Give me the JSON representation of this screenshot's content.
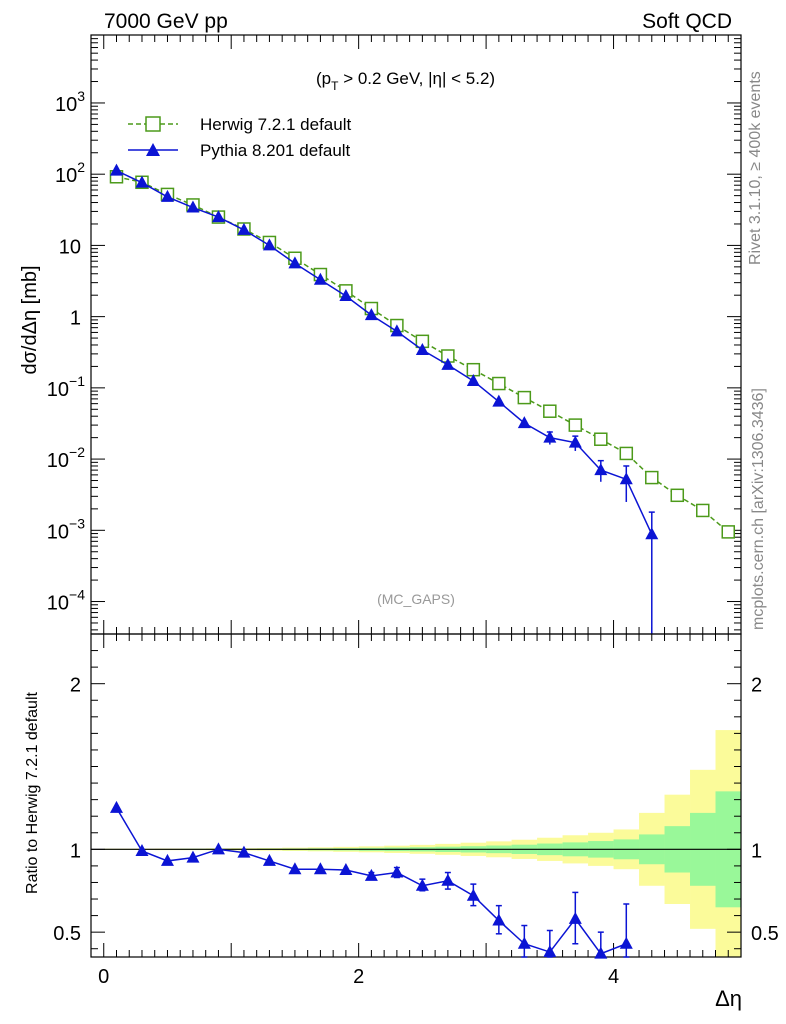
{
  "header": {
    "left": "7000 GeV pp",
    "right": "Soft QCD"
  },
  "side_labels": {
    "rivet": "Rivet 3.1.10, ≥ 400k events",
    "mcplots": "mcplots.cern.ch [arXiv:1306.3436]"
  },
  "chart_data": [
    {
      "type": "line",
      "panel": "main",
      "cut_label": "(p",
      "cut_label_sub": "T",
      "cut_label_rest": " > 0.2 GeV, |η| < 5.2)",
      "analysis_tag": "(MC_GAPS)",
      "ylabel": "dσ/dΔη [mb]",
      "yscale": "log",
      "xlim": [
        -0.1,
        5.0
      ],
      "ylim": [
        3.5e-05,
        9000
      ],
      "y_ticks": [
        {
          "v": 0.0001,
          "base": "10",
          "exp": "−4"
        },
        {
          "v": 0.001,
          "base": "10",
          "exp": "−3"
        },
        {
          "v": 0.01,
          "base": "10",
          "exp": "−2"
        },
        {
          "v": 0.1,
          "base": "10",
          "exp": "−1"
        },
        {
          "v": 1,
          "base": "1",
          "exp": ""
        },
        {
          "v": 10,
          "base": "10",
          "exp": ""
        },
        {
          "v": 100,
          "base": "10",
          "exp": "2"
        },
        {
          "v": 1000,
          "base": "10",
          "exp": "3"
        }
      ],
      "legend_placement": "top-left",
      "series": [
        {
          "name": "Herwig 7.2.1 default",
          "color": "#4c9a1a",
          "marker": "open-square",
          "dashed": true,
          "points": [
            {
              "x": 0.1,
              "y": 92
            },
            {
              "x": 0.3,
              "y": 77
            },
            {
              "x": 0.5,
              "y": 52
            },
            {
              "x": 0.7,
              "y": 37
            },
            {
              "x": 0.9,
              "y": 25
            },
            {
              "x": 1.1,
              "y": 17
            },
            {
              "x": 1.3,
              "y": 11
            },
            {
              "x": 1.5,
              "y": 6.6
            },
            {
              "x": 1.7,
              "y": 3.9
            },
            {
              "x": 1.9,
              "y": 2.3
            },
            {
              "x": 2.1,
              "y": 1.3
            },
            {
              "x": 2.3,
              "y": 0.75
            },
            {
              "x": 2.5,
              "y": 0.45
            },
            {
              "x": 2.7,
              "y": 0.28
            },
            {
              "x": 2.9,
              "y": 0.18
            },
            {
              "x": 3.1,
              "y": 0.115
            },
            {
              "x": 3.3,
              "y": 0.073
            },
            {
              "x": 3.5,
              "y": 0.047
            },
            {
              "x": 3.7,
              "y": 0.03
            },
            {
              "x": 3.9,
              "y": 0.019
            },
            {
              "x": 4.1,
              "y": 0.012
            },
            {
              "x": 4.3,
              "y": 0.0055
            },
            {
              "x": 4.5,
              "y": 0.0031
            },
            {
              "x": 4.7,
              "y": 0.0019
            },
            {
              "x": 4.9,
              "y": 0.00095
            }
          ]
        },
        {
          "name": "Pythia 8.201 default",
          "color": "#0b14d4",
          "marker": "filled-triangle",
          "dashed": false,
          "points": [
            {
              "x": 0.1,
              "y": 112
            },
            {
              "x": 0.3,
              "y": 76
            },
            {
              "x": 0.5,
              "y": 48
            },
            {
              "x": 0.7,
              "y": 34
            },
            {
              "x": 0.9,
              "y": 25
            },
            {
              "x": 1.1,
              "y": 16.5
            },
            {
              "x": 1.3,
              "y": 10
            },
            {
              "x": 1.5,
              "y": 5.6
            },
            {
              "x": 1.7,
              "y": 3.3
            },
            {
              "x": 1.9,
              "y": 1.95
            },
            {
              "x": 2.1,
              "y": 1.05
            },
            {
              "x": 2.3,
              "y": 0.62
            },
            {
              "x": 2.5,
              "y": 0.34
            },
            {
              "x": 2.7,
              "y": 0.21
            },
            {
              "x": 2.9,
              "y": 0.125
            },
            {
              "x": 3.1,
              "y": 0.064
            },
            {
              "x": 3.3,
              "y": 0.032
            },
            {
              "x": 3.5,
              "y": 0.02,
              "err": [
                0.016,
                0.024
              ]
            },
            {
              "x": 3.7,
              "y": 0.017,
              "err": [
                0.013,
                0.021
              ]
            },
            {
              "x": 3.9,
              "y": 0.007,
              "err": [
                0.0048,
                0.0095
              ]
            },
            {
              "x": 4.1,
              "y": 0.0052,
              "err": [
                0.0025,
                0.008
              ]
            },
            {
              "x": 4.3,
              "y": 0.00088,
              "err": [
                1e-06,
                0.0018
              ]
            }
          ]
        }
      ]
    },
    {
      "type": "line",
      "panel": "ratio",
      "ylabel": "Ratio to Herwig 7.2.1 default",
      "xlabel": "Δη",
      "xlim": [
        -0.1,
        5.0
      ],
      "ylim": [
        0.35,
        2.3
      ],
      "x_ticks": [
        {
          "v": 0,
          "label": "0"
        },
        {
          "v": 2,
          "label": "2"
        },
        {
          "v": 4,
          "label": "4"
        }
      ],
      "y_ticks": [
        {
          "v": 0.5,
          "label": "0.5"
        },
        {
          "v": 1,
          "label": "1"
        },
        {
          "v": 2,
          "label": "2"
        }
      ],
      "reference_line": 1,
      "bands": [
        {
          "x0": 0.0,
          "x1": 0.2,
          "g": 0.002,
          "y": 0.004
        },
        {
          "x0": 0.2,
          "x1": 0.4,
          "g": 0.002,
          "y": 0.004
        },
        {
          "x0": 0.4,
          "x1": 0.6,
          "g": 0.002,
          "y": 0.005
        },
        {
          "x0": 0.6,
          "x1": 0.8,
          "g": 0.003,
          "y": 0.005
        },
        {
          "x0": 0.8,
          "x1": 1.0,
          "g": 0.003,
          "y": 0.006
        },
        {
          "x0": 1.0,
          "x1": 1.2,
          "g": 0.003,
          "y": 0.007
        },
        {
          "x0": 1.2,
          "x1": 1.4,
          "g": 0.004,
          "y": 0.008
        },
        {
          "x0": 1.4,
          "x1": 1.6,
          "g": 0.005,
          "y": 0.01
        },
        {
          "x0": 1.6,
          "x1": 1.8,
          "g": 0.006,
          "y": 0.012
        },
        {
          "x0": 1.8,
          "x1": 2.0,
          "g": 0.007,
          "y": 0.015
        },
        {
          "x0": 2.0,
          "x1": 2.2,
          "g": 0.009,
          "y": 0.018
        },
        {
          "x0": 2.2,
          "x1": 2.4,
          "g": 0.011,
          "y": 0.022
        },
        {
          "x0": 2.4,
          "x1": 2.6,
          "g": 0.013,
          "y": 0.027
        },
        {
          "x0": 2.6,
          "x1": 2.8,
          "g": 0.016,
          "y": 0.033
        },
        {
          "x0": 2.8,
          "x1": 3.0,
          "g": 0.019,
          "y": 0.04
        },
        {
          "x0": 3.0,
          "x1": 3.2,
          "g": 0.023,
          "y": 0.048
        },
        {
          "x0": 3.2,
          "x1": 3.4,
          "g": 0.028,
          "y": 0.058
        },
        {
          "x0": 3.4,
          "x1": 3.6,
          "g": 0.035,
          "y": 0.07
        },
        {
          "x0": 3.6,
          "x1": 3.8,
          "g": 0.042,
          "y": 0.085
        },
        {
          "x0": 3.8,
          "x1": 4.0,
          "g": 0.05,
          "y": 0.1
        },
        {
          "x0": 4.0,
          "x1": 4.2,
          "g": 0.06,
          "y": 0.12
        },
        {
          "x0": 4.2,
          "x1": 4.4,
          "g": 0.09,
          "y": 0.22
        },
        {
          "x0": 4.4,
          "x1": 4.6,
          "g": 0.14,
          "y": 0.33
        },
        {
          "x0": 4.6,
          "x1": 4.8,
          "g": 0.22,
          "y": 0.48
        },
        {
          "x0": 4.8,
          "x1": 5.0,
          "g": 0.35,
          "y": 0.72
        }
      ],
      "band_colors": {
        "green": "#99f899",
        "yellow": "#fbfb9a"
      },
      "series": [
        {
          "name": "Pythia 8.201 default",
          "color": "#0b14d4",
          "points": [
            {
              "x": 0.1,
              "y": 1.25
            },
            {
              "x": 0.3,
              "y": 0.99
            },
            {
              "x": 0.5,
              "y": 0.93
            },
            {
              "x": 0.7,
              "y": 0.95
            },
            {
              "x": 0.9,
              "y": 1.0
            },
            {
              "x": 1.1,
              "y": 0.98
            },
            {
              "x": 1.3,
              "y": 0.93
            },
            {
              "x": 1.5,
              "y": 0.88
            },
            {
              "x": 1.7,
              "y": 0.88
            },
            {
              "x": 1.9,
              "y": 0.875
            },
            {
              "x": 2.1,
              "y": 0.84,
              "err": [
                0.82,
                0.86
              ]
            },
            {
              "x": 2.3,
              "y": 0.86,
              "err": [
                0.83,
                0.89
              ]
            },
            {
              "x": 2.5,
              "y": 0.78,
              "err": [
                0.75,
                0.82
              ]
            },
            {
              "x": 2.7,
              "y": 0.81,
              "err": [
                0.76,
                0.86
              ]
            },
            {
              "x": 2.9,
              "y": 0.72,
              "err": [
                0.66,
                0.79
              ]
            },
            {
              "x": 3.1,
              "y": 0.57,
              "err": [
                0.49,
                0.66
              ]
            },
            {
              "x": 3.3,
              "y": 0.43,
              "err": [
                0.33,
                0.54
              ]
            },
            {
              "x": 3.5,
              "y": 0.38,
              "err": [
                0.25,
                0.51
              ]
            },
            {
              "x": 3.7,
              "y": 0.58,
              "err": [
                0.43,
                0.74
              ]
            },
            {
              "x": 3.9,
              "y": 0.37,
              "err": [
                0.26,
                0.5
              ]
            },
            {
              "x": 4.1,
              "y": 0.43,
              "err": [
                0.21,
                0.67
              ]
            }
          ]
        }
      ]
    }
  ]
}
